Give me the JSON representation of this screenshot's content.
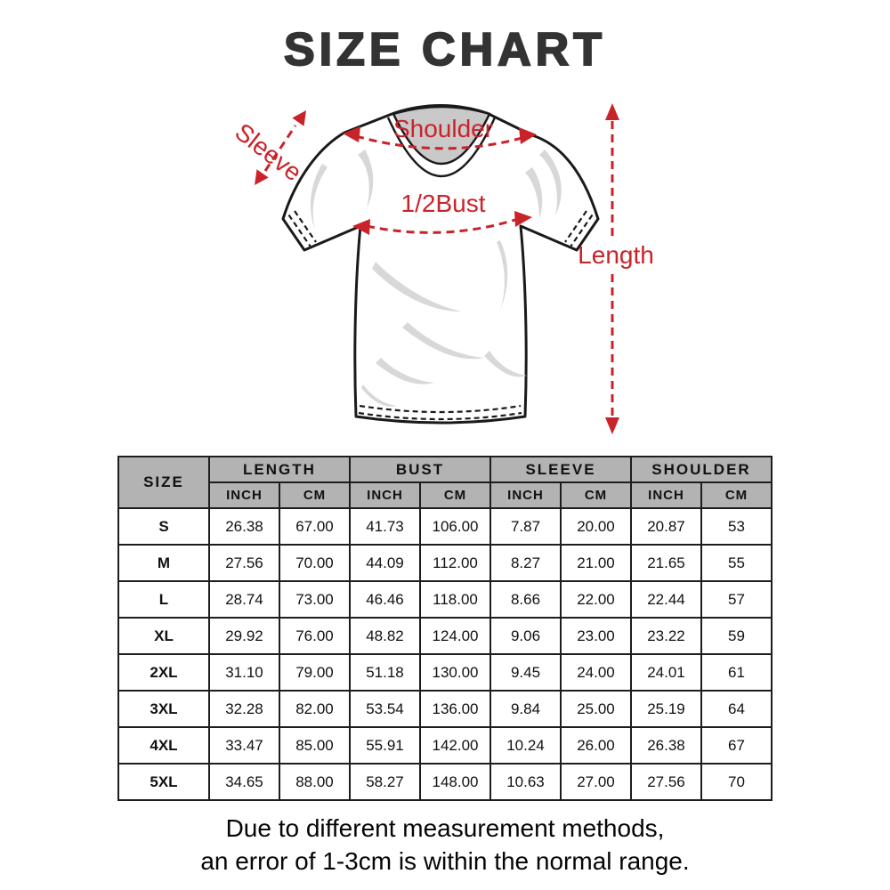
{
  "title": "SIZE CHART",
  "colors": {
    "accent": "#c9232a",
    "table_header_bg": "#b3b3b3",
    "title_color": "#333333"
  },
  "diagram": {
    "labels": {
      "sleeve": "Sleeve",
      "shoulder": "Shoulder",
      "bust": "1/2Bust",
      "length": "Length"
    }
  },
  "table": {
    "size_header": "SIZE",
    "groups": [
      {
        "label": "LENGTH"
      },
      {
        "label": "BUST"
      },
      {
        "label": "SLEEVE"
      },
      {
        "label": "SHOULDER"
      }
    ],
    "unit_headers": [
      "INCH",
      "CM",
      "INCH",
      "CM",
      "INCH",
      "CM",
      "INCH",
      "CM"
    ],
    "rows": [
      {
        "size": "S",
        "values": [
          "26.38",
          "67.00",
          "41.73",
          "106.00",
          "7.87",
          "20.00",
          "20.87",
          "53"
        ]
      },
      {
        "size": "M",
        "values": [
          "27.56",
          "70.00",
          "44.09",
          "112.00",
          "8.27",
          "21.00",
          "21.65",
          "55"
        ]
      },
      {
        "size": "L",
        "values": [
          "28.74",
          "73.00",
          "46.46",
          "118.00",
          "8.66",
          "22.00",
          "22.44",
          "57"
        ]
      },
      {
        "size": "XL",
        "values": [
          "29.92",
          "76.00",
          "48.82",
          "124.00",
          "9.06",
          "23.00",
          "23.22",
          "59"
        ]
      },
      {
        "size": "2XL",
        "values": [
          "31.10",
          "79.00",
          "51.18",
          "130.00",
          "9.45",
          "24.00",
          "24.01",
          "61"
        ]
      },
      {
        "size": "3XL",
        "values": [
          "32.28",
          "82.00",
          "53.54",
          "136.00",
          "9.84",
          "25.00",
          "25.19",
          "64"
        ]
      },
      {
        "size": "4XL",
        "values": [
          "33.47",
          "85.00",
          "55.91",
          "142.00",
          "10.24",
          "26.00",
          "26.38",
          "67"
        ]
      },
      {
        "size": "5XL",
        "values": [
          "34.65",
          "88.00",
          "58.27",
          "148.00",
          "10.63",
          "27.00",
          "27.56",
          "70"
        ]
      }
    ]
  },
  "footer": {
    "line1": "Due to different measurement methods,",
    "line2": "an error of 1-3cm is within the normal range."
  },
  "chart_data": {
    "type": "table",
    "title": "SIZE CHART",
    "columns": [
      "SIZE",
      "LENGTH (INCH)",
      "LENGTH (CM)",
      "BUST (INCH)",
      "BUST (CM)",
      "SLEEVE (INCH)",
      "SLEEVE (CM)",
      "SHOULDER (INCH)",
      "SHOULDER (CM)"
    ],
    "rows": [
      [
        "S",
        26.38,
        67.0,
        41.73,
        106.0,
        7.87,
        20.0,
        20.87,
        53
      ],
      [
        "M",
        27.56,
        70.0,
        44.09,
        112.0,
        8.27,
        21.0,
        21.65,
        55
      ],
      [
        "L",
        28.74,
        73.0,
        46.46,
        118.0,
        8.66,
        22.0,
        22.44,
        57
      ],
      [
        "XL",
        29.92,
        76.0,
        48.82,
        124.0,
        9.06,
        23.0,
        23.22,
        59
      ],
      [
        "2XL",
        31.1,
        79.0,
        51.18,
        130.0,
        9.45,
        24.0,
        24.01,
        61
      ],
      [
        "3XL",
        32.28,
        82.0,
        53.54,
        136.0,
        9.84,
        25.0,
        25.19,
        64
      ],
      [
        "4XL",
        33.47,
        85.0,
        55.91,
        142.0,
        10.24,
        26.0,
        26.38,
        67
      ],
      [
        "5XL",
        34.65,
        88.0,
        58.27,
        148.0,
        10.63,
        27.0,
        27.56,
        70
      ]
    ],
    "annotations": [
      "Sleeve",
      "Shoulder",
      "1/2Bust",
      "Length"
    ],
    "note": "Due to different measurement methods, an error of 1-3cm is within the normal range."
  }
}
